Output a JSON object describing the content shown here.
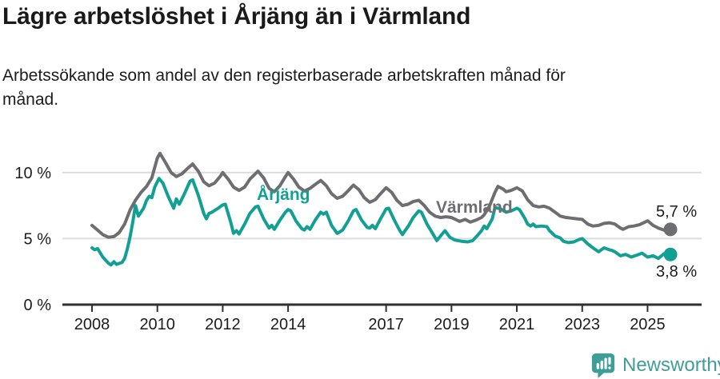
{
  "header": {
    "title": "Lägre arbetslöshet i Årjäng än i Värmland",
    "subtitle_line1": "Arbetssökande som andel av den registerbaserade arbetskraften månad för",
    "subtitle_line2": "månad."
  },
  "footer": {
    "brand": "Newsworthy"
  },
  "colors": {
    "arjang_teal": "#12a095",
    "varmland_gray": "#6e6e72",
    "brand_teal": "#3f9e98",
    "gridline": "#dcdcdc",
    "axis": "#2f2f2f",
    "text": "#1c1c1c"
  },
  "chart_data": {
    "type": "line",
    "title": "Lägre arbetslöshet i Årjäng än i Värmland",
    "subtitle": "Arbetssökande som andel av den registerbaserade arbetskraften månad för månad.",
    "unit": "%",
    "grid": "horizontal-only",
    "legend": "inline-labels",
    "xlim": [
      2007.1,
      2026.6
    ],
    "ylim": [
      0,
      11.8
    ],
    "y_ticks": [
      {
        "value": 0,
        "label": "0 %"
      },
      {
        "value": 5,
        "label": "5 %"
      },
      {
        "value": 10,
        "label": "10 %"
      }
    ],
    "x_ticks": [
      {
        "year": 2008,
        "label": "2008"
      },
      {
        "year": 2010,
        "label": "2010"
      },
      {
        "year": 2012,
        "label": "2012"
      },
      {
        "year": 2014,
        "label": "2014"
      },
      {
        "year": 2017,
        "label": "2017"
      },
      {
        "year": 2019,
        "label": "2019"
      },
      {
        "year": 2021,
        "label": "2021"
      },
      {
        "year": 2023,
        "label": "2023"
      },
      {
        "year": 2025,
        "label": "2025"
      }
    ],
    "series": [
      {
        "name": "Värmland",
        "color": "#6e6e72",
        "end_label": "5,7 %",
        "end_value": 5.7,
        "points": [
          [
            2008.0,
            6.0
          ],
          [
            2008.17,
            5.65
          ],
          [
            2008.33,
            5.3
          ],
          [
            2008.5,
            5.1
          ],
          [
            2008.67,
            5.15
          ],
          [
            2008.83,
            5.45
          ],
          [
            2009.0,
            6.1
          ],
          [
            2009.17,
            7.2
          ],
          [
            2009.33,
            7.9
          ],
          [
            2009.5,
            8.5
          ],
          [
            2009.67,
            8.95
          ],
          [
            2009.83,
            9.6
          ],
          [
            2010.0,
            11.1
          ],
          [
            2010.08,
            11.45
          ],
          [
            2010.25,
            10.75
          ],
          [
            2010.42,
            10.0
          ],
          [
            2010.58,
            9.7
          ],
          [
            2010.75,
            9.9
          ],
          [
            2010.92,
            10.3
          ],
          [
            2011.08,
            10.65
          ],
          [
            2011.25,
            10.1
          ],
          [
            2011.42,
            9.3
          ],
          [
            2011.58,
            9.0
          ],
          [
            2011.75,
            9.2
          ],
          [
            2011.92,
            9.7
          ],
          [
            2012.0,
            10.0
          ],
          [
            2012.17,
            9.5
          ],
          [
            2012.33,
            8.9
          ],
          [
            2012.5,
            8.65
          ],
          [
            2012.67,
            8.9
          ],
          [
            2012.83,
            9.5
          ],
          [
            2013.08,
            10.1
          ],
          [
            2013.25,
            9.6
          ],
          [
            2013.42,
            8.8
          ],
          [
            2013.58,
            8.55
          ],
          [
            2013.75,
            9.0
          ],
          [
            2013.92,
            9.7
          ],
          [
            2014.0,
            10.0
          ],
          [
            2014.17,
            9.5
          ],
          [
            2014.33,
            8.9
          ],
          [
            2014.5,
            8.6
          ],
          [
            2014.67,
            8.8
          ],
          [
            2014.83,
            9.1
          ],
          [
            2015.0,
            9.4
          ],
          [
            2015.17,
            9.0
          ],
          [
            2015.33,
            8.4
          ],
          [
            2015.5,
            8.05
          ],
          [
            2015.67,
            8.2
          ],
          [
            2015.83,
            8.6
          ],
          [
            2016.0,
            9.05
          ],
          [
            2016.17,
            8.7
          ],
          [
            2016.33,
            8.1
          ],
          [
            2016.5,
            7.75
          ],
          [
            2016.67,
            7.95
          ],
          [
            2016.83,
            8.4
          ],
          [
            2017.0,
            8.85
          ],
          [
            2017.17,
            8.5
          ],
          [
            2017.33,
            7.9
          ],
          [
            2017.5,
            7.5
          ],
          [
            2017.67,
            7.6
          ],
          [
            2017.83,
            7.8
          ],
          [
            2018.0,
            7.9
          ],
          [
            2018.17,
            7.5
          ],
          [
            2018.33,
            7.0
          ],
          [
            2018.5,
            6.7
          ],
          [
            2018.67,
            6.6
          ],
          [
            2018.83,
            6.65
          ],
          [
            2019.0,
            6.6
          ],
          [
            2019.25,
            6.3
          ],
          [
            2019.42,
            6.45
          ],
          [
            2019.58,
            6.25
          ],
          [
            2019.75,
            6.4
          ],
          [
            2019.92,
            6.6
          ],
          [
            2020.0,
            6.8
          ],
          [
            2020.17,
            7.5
          ],
          [
            2020.33,
            8.5
          ],
          [
            2020.42,
            8.95
          ],
          [
            2020.58,
            8.75
          ],
          [
            2020.67,
            8.55
          ],
          [
            2020.83,
            8.65
          ],
          [
            2021.0,
            8.85
          ],
          [
            2021.17,
            8.6
          ],
          [
            2021.33,
            7.95
          ],
          [
            2021.5,
            7.5
          ],
          [
            2021.67,
            7.4
          ],
          [
            2021.83,
            7.45
          ],
          [
            2022.0,
            7.3
          ],
          [
            2022.17,
            7.0
          ],
          [
            2022.33,
            6.7
          ],
          [
            2022.5,
            6.6
          ],
          [
            2022.67,
            6.55
          ],
          [
            2022.83,
            6.5
          ],
          [
            2023.0,
            6.45
          ],
          [
            2023.17,
            6.1
          ],
          [
            2023.33,
            5.95
          ],
          [
            2023.5,
            6.0
          ],
          [
            2023.67,
            6.15
          ],
          [
            2023.83,
            6.2
          ],
          [
            2024.0,
            6.1
          ],
          [
            2024.17,
            5.8
          ],
          [
            2024.25,
            5.7
          ],
          [
            2024.42,
            5.9
          ],
          [
            2024.58,
            5.95
          ],
          [
            2024.75,
            6.05
          ],
          [
            2024.92,
            6.25
          ],
          [
            2025.0,
            6.35
          ],
          [
            2025.17,
            6.0
          ],
          [
            2025.33,
            5.8
          ],
          [
            2025.5,
            5.65
          ],
          [
            2025.7,
            5.7
          ]
        ]
      },
      {
        "name": "Årjäng",
        "color": "#12a095",
        "end_label": "3,8 %",
        "end_value": 3.8,
        "points": [
          [
            2008.0,
            4.3
          ],
          [
            2008.08,
            4.15
          ],
          [
            2008.17,
            4.25
          ],
          [
            2008.33,
            3.6
          ],
          [
            2008.5,
            3.15
          ],
          [
            2008.58,
            3.0
          ],
          [
            2008.67,
            3.25
          ],
          [
            2008.75,
            3.05
          ],
          [
            2008.92,
            3.2
          ],
          [
            2009.0,
            3.5
          ],
          [
            2009.08,
            4.2
          ],
          [
            2009.17,
            5.2
          ],
          [
            2009.25,
            6.3
          ],
          [
            2009.33,
            7.5
          ],
          [
            2009.42,
            6.7
          ],
          [
            2009.58,
            7.3
          ],
          [
            2009.67,
            7.9
          ],
          [
            2009.75,
            8.2
          ],
          [
            2009.83,
            8.1
          ],
          [
            2009.92,
            8.9
          ],
          [
            2010.05,
            9.55
          ],
          [
            2010.17,
            9.2
          ],
          [
            2010.33,
            8.2
          ],
          [
            2010.5,
            7.3
          ],
          [
            2010.58,
            8.0
          ],
          [
            2010.67,
            7.6
          ],
          [
            2010.83,
            8.4
          ],
          [
            2011.0,
            9.35
          ],
          [
            2011.08,
            9.45
          ],
          [
            2011.25,
            8.3
          ],
          [
            2011.42,
            6.9
          ],
          [
            2011.5,
            6.5
          ],
          [
            2011.58,
            6.9
          ],
          [
            2011.67,
            7.0
          ],
          [
            2011.83,
            7.25
          ],
          [
            2012.0,
            7.55
          ],
          [
            2012.08,
            7.6
          ],
          [
            2012.25,
            6.2
          ],
          [
            2012.33,
            5.4
          ],
          [
            2012.42,
            5.6
          ],
          [
            2012.5,
            5.35
          ],
          [
            2012.67,
            6.1
          ],
          [
            2012.83,
            6.9
          ],
          [
            2013.0,
            7.4
          ],
          [
            2013.08,
            7.45
          ],
          [
            2013.25,
            6.5
          ],
          [
            2013.42,
            5.8
          ],
          [
            2013.5,
            6.0
          ],
          [
            2013.58,
            5.7
          ],
          [
            2013.75,
            6.4
          ],
          [
            2013.92,
            7.0
          ],
          [
            2014.0,
            7.2
          ],
          [
            2014.08,
            7.1
          ],
          [
            2014.25,
            6.3
          ],
          [
            2014.42,
            5.75
          ],
          [
            2014.5,
            5.65
          ],
          [
            2014.58,
            5.9
          ],
          [
            2014.67,
            5.7
          ],
          [
            2014.83,
            6.4
          ],
          [
            2015.0,
            7.0
          ],
          [
            2015.08,
            6.85
          ],
          [
            2015.17,
            7.0
          ],
          [
            2015.33,
            6.0
          ],
          [
            2015.5,
            5.4
          ],
          [
            2015.58,
            5.5
          ],
          [
            2015.67,
            5.65
          ],
          [
            2015.83,
            6.3
          ],
          [
            2016.0,
            7.1
          ],
          [
            2016.08,
            7.2
          ],
          [
            2016.25,
            6.4
          ],
          [
            2016.42,
            5.85
          ],
          [
            2016.5,
            5.8
          ],
          [
            2016.58,
            6.0
          ],
          [
            2016.67,
            5.75
          ],
          [
            2016.83,
            6.5
          ],
          [
            2017.0,
            7.25
          ],
          [
            2017.08,
            7.3
          ],
          [
            2017.25,
            6.4
          ],
          [
            2017.42,
            5.6
          ],
          [
            2017.5,
            5.3
          ],
          [
            2017.58,
            5.6
          ],
          [
            2017.67,
            5.9
          ],
          [
            2017.83,
            6.6
          ],
          [
            2018.0,
            7.1
          ],
          [
            2018.08,
            7.0
          ],
          [
            2018.25,
            6.1
          ],
          [
            2018.42,
            5.4
          ],
          [
            2018.55,
            4.85
          ],
          [
            2018.7,
            5.3
          ],
          [
            2018.8,
            5.6
          ],
          [
            2018.95,
            5.1
          ],
          [
            2019.1,
            4.9
          ],
          [
            2019.3,
            4.8
          ],
          [
            2019.5,
            4.75
          ],
          [
            2019.65,
            4.85
          ],
          [
            2019.8,
            5.25
          ],
          [
            2019.92,
            5.6
          ],
          [
            2020.0,
            5.95
          ],
          [
            2020.08,
            5.75
          ],
          [
            2020.25,
            6.5
          ],
          [
            2020.33,
            7.35
          ],
          [
            2020.5,
            7.25
          ],
          [
            2020.67,
            7.0
          ],
          [
            2020.83,
            7.1
          ],
          [
            2021.0,
            7.3
          ],
          [
            2021.08,
            7.2
          ],
          [
            2021.25,
            6.5
          ],
          [
            2021.33,
            6.1
          ],
          [
            2021.42,
            5.95
          ],
          [
            2021.5,
            6.1
          ],
          [
            2021.58,
            5.9
          ],
          [
            2021.75,
            5.95
          ],
          [
            2021.92,
            5.9
          ],
          [
            2022.0,
            5.6
          ],
          [
            2022.17,
            5.2
          ],
          [
            2022.33,
            5.05
          ],
          [
            2022.42,
            4.8
          ],
          [
            2022.58,
            4.7
          ],
          [
            2022.75,
            4.75
          ],
          [
            2022.92,
            4.95
          ],
          [
            2023.0,
            5.0
          ],
          [
            2023.17,
            4.6
          ],
          [
            2023.33,
            4.3
          ],
          [
            2023.5,
            4.0
          ],
          [
            2023.67,
            4.3
          ],
          [
            2023.83,
            4.15
          ],
          [
            2023.92,
            4.1
          ],
          [
            2024.0,
            4.0
          ],
          [
            2024.17,
            3.7
          ],
          [
            2024.33,
            3.8
          ],
          [
            2024.5,
            3.6
          ],
          [
            2024.67,
            3.75
          ],
          [
            2024.83,
            3.9
          ],
          [
            2025.0,
            3.6
          ],
          [
            2025.17,
            3.7
          ],
          [
            2025.33,
            3.5
          ],
          [
            2025.5,
            3.85
          ],
          [
            2025.7,
            3.8
          ]
        ]
      }
    ]
  }
}
